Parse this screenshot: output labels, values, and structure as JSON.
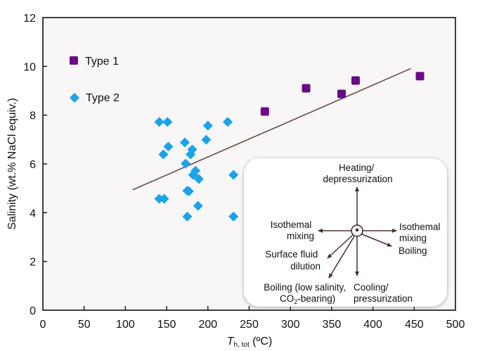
{
  "chart_data": {
    "type": "scatter",
    "xlabel_main": "T",
    "xlabel_sub": "h, tot",
    "xlabel_unit": " (ºC)",
    "ylabel": "Salinity (wt.% NaCl equiv.)",
    "xlim": [
      0,
      500
    ],
    "ylim": [
      0,
      12
    ],
    "x_ticks": [
      0,
      50,
      100,
      150,
      200,
      250,
      300,
      350,
      400,
      450,
      500
    ],
    "y_ticks": [
      0,
      2,
      4,
      6,
      8,
      10,
      12
    ],
    "grid": false,
    "legend_position": "top-left",
    "series": [
      {
        "name": "Type 1",
        "marker": "square",
        "color": "#6a0a86",
        "points": [
          [
            269,
            8.15
          ],
          [
            319,
            9.1
          ],
          [
            362,
            8.87
          ],
          [
            379,
            9.42
          ],
          [
            457,
            9.6
          ]
        ]
      },
      {
        "name": "Type 2",
        "marker": "diamond",
        "color": "#1aa3ea",
        "points": [
          [
            141,
            7.72
          ],
          [
            151,
            7.72
          ],
          [
            200,
            7.57
          ],
          [
            224,
            7.72
          ],
          [
            198,
            6.99
          ],
          [
            172,
            6.88
          ],
          [
            152,
            6.71
          ],
          [
            146,
            6.39
          ],
          [
            181,
            6.59
          ],
          [
            179,
            6.39
          ],
          [
            173,
            6.01
          ],
          [
            185,
            5.72
          ],
          [
            182,
            5.55
          ],
          [
            189,
            5.38
          ],
          [
            231,
            5.55
          ],
          [
            177,
            4.88
          ],
          [
            175,
            4.9
          ],
          [
            141,
            4.57
          ],
          [
            147,
            4.57
          ],
          [
            188,
            4.28
          ],
          [
            175,
            3.84
          ],
          [
            231,
            3.84
          ]
        ]
      }
    ],
    "trend_line": {
      "color": "#6b4a44",
      "from": [
        109,
        4.94
      ],
      "to": [
        446,
        9.91
      ]
    },
    "inset": {
      "labels": {
        "up": [
          "Heating/",
          "depressurization"
        ],
        "left": [
          "Isothemal",
          "mixing"
        ],
        "right": [
          "Isothemal",
          "mixing"
        ],
        "boiling": "Boiling",
        "dilution": [
          "Surface fluid",
          "dilution"
        ],
        "low_salinity": [
          "Boiling (low salinity,",
          "CO",
          "2",
          "-bearing)"
        ],
        "down": [
          "Cooling/",
          "pressurization"
        ]
      }
    }
  }
}
